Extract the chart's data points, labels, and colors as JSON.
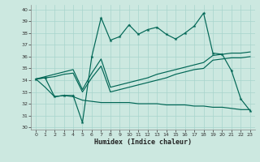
{
  "xlabel": "Humidex (Indice chaleur)",
  "background_color": "#cce8e0",
  "grid_color": "#a8d4cc",
  "line_color": "#006655",
  "xlim": [
    -0.5,
    23.5
  ],
  "ylim": [
    29.8,
    40.4
  ],
  "yticks": [
    30,
    31,
    32,
    33,
    34,
    35,
    36,
    37,
    38,
    39,
    40
  ],
  "xticks": [
    0,
    1,
    2,
    3,
    4,
    5,
    6,
    7,
    8,
    9,
    10,
    11,
    12,
    13,
    14,
    15,
    16,
    17,
    18,
    19,
    20,
    21,
    22,
    23
  ],
  "series": {
    "line1": {
      "x": [
        0,
        1,
        2,
        3,
        4,
        5,
        6,
        7,
        8,
        9,
        10,
        11,
        12,
        13,
        14,
        15,
        16,
        17,
        18,
        19,
        20,
        21,
        22,
        23
      ],
      "y": [
        34.1,
        34.2,
        32.6,
        32.7,
        32.7,
        30.4,
        36.0,
        39.3,
        37.4,
        37.7,
        38.7,
        37.9,
        38.3,
        38.5,
        37.9,
        37.5,
        38.0,
        38.6,
        39.7,
        36.3,
        36.2,
        34.8,
        32.4,
        31.4
      ]
    },
    "line2": {
      "x": [
        0,
        1,
        2,
        3,
        4,
        5,
        6,
        7,
        8,
        9,
        10,
        11,
        12,
        13,
        14,
        15,
        16,
        17,
        18,
        19,
        20,
        21,
        22,
        23
      ],
      "y": [
        34.1,
        34.3,
        34.5,
        34.7,
        34.9,
        33.2,
        34.6,
        35.8,
        33.4,
        33.6,
        33.8,
        34.0,
        34.2,
        34.5,
        34.7,
        34.9,
        35.1,
        35.3,
        35.5,
        36.1,
        36.2,
        36.3,
        36.3,
        36.4
      ]
    },
    "line3": {
      "x": [
        0,
        1,
        2,
        3,
        4,
        5,
        6,
        7,
        8,
        9,
        10,
        11,
        12,
        13,
        14,
        15,
        16,
        17,
        18,
        19,
        20,
        21,
        22,
        23
      ],
      "y": [
        34.1,
        34.2,
        34.3,
        34.5,
        34.6,
        33.0,
        34.2,
        35.2,
        33.0,
        33.2,
        33.4,
        33.6,
        33.8,
        34.0,
        34.2,
        34.5,
        34.7,
        34.9,
        35.0,
        35.7,
        35.8,
        35.9,
        35.9,
        36.0
      ]
    },
    "line4": {
      "x": [
        0,
        1,
        2,
        3,
        4,
        5,
        6,
        7,
        8,
        9,
        10,
        11,
        12,
        13,
        14,
        15,
        16,
        17,
        18,
        19,
        20,
        21,
        22,
        23
      ],
      "y": [
        34.1,
        33.4,
        32.6,
        32.7,
        32.6,
        32.3,
        32.2,
        32.1,
        32.1,
        32.1,
        32.1,
        32.0,
        32.0,
        32.0,
        31.9,
        31.9,
        31.9,
        31.8,
        31.8,
        31.7,
        31.7,
        31.6,
        31.5,
        31.5
      ]
    }
  }
}
